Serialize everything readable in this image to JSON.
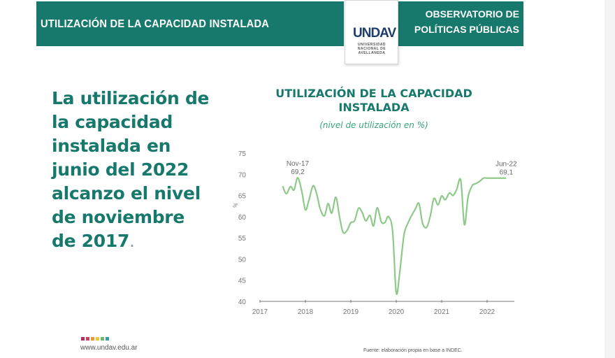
{
  "header": {
    "title": "UTILIZACIÓN DE LA CAPACIDAD INSTALADA",
    "observatorio_line1": "OBSERVATORIO DE",
    "observatorio_line2": "POLÍTICAS PÚBLICAS",
    "logo_mark": "UNDAV",
    "logo_sub": "UNIVERSIDAD NACIONAL DE AVELLANEDA"
  },
  "headline": {
    "lines": [
      "La utilización de",
      "la capacidad",
      "instalada en",
      "junio del 2022",
      "alcanzo el nivel",
      "de noviembre",
      "de 2017"
    ],
    "end_punct": "."
  },
  "footer": {
    "url": "www.undav.edu.ar",
    "source": "Fuente: elaboración propia en base a INDEC.",
    "dot_colors": [
      "#b0305a",
      "#d0405a",
      "#e89a3a",
      "#e6c83a",
      "#6fb86a",
      "#3a9aa8"
    ]
  },
  "colors": {
    "brand": "#17786c",
    "line": "#8fc98a"
  },
  "chart_data": {
    "type": "line",
    "title": "UTILIZACIÓN DE LA CAPACIDAD INSTALADA",
    "subtitle": "(nivel de utilización en %)",
    "xlabel": "",
    "ylabel": "%",
    "ylim": [
      40,
      75
    ],
    "yticks": [
      75,
      70,
      65,
      60,
      55,
      50,
      45,
      40
    ],
    "xlim": [
      2017.0,
      2022.6
    ],
    "xticks": [
      2017,
      2018,
      2019,
      2020,
      2021,
      2022
    ],
    "grid": false,
    "annotations": [
      {
        "label": "Nov-17",
        "value": "69,2",
        "x": 2017.83,
        "y": 69.2
      },
      {
        "label": "Jun-22",
        "value": "69,1",
        "x": 2022.42,
        "y": 69.1
      }
    ],
    "series": [
      {
        "name": "Utilización de la capacidad instalada",
        "x": [
          2017.5,
          2017.58,
          2017.67,
          2017.75,
          2017.83,
          2017.92,
          2018.0,
          2018.08,
          2018.17,
          2018.25,
          2018.33,
          2018.42,
          2018.5,
          2018.58,
          2018.67,
          2018.75,
          2018.83,
          2018.92,
          2019.0,
          2019.08,
          2019.17,
          2019.25,
          2019.33,
          2019.42,
          2019.5,
          2019.58,
          2019.67,
          2019.75,
          2019.83,
          2019.92,
          2020.0,
          2020.08,
          2020.17,
          2020.25,
          2020.33,
          2020.42,
          2020.5,
          2020.58,
          2020.67,
          2020.75,
          2020.83,
          2020.92,
          2021.0,
          2021.08,
          2021.17,
          2021.25,
          2021.33,
          2021.42,
          2021.5,
          2021.58,
          2021.67,
          2021.75,
          2021.83,
          2021.92,
          2022.0,
          2022.08,
          2022.17,
          2022.25,
          2022.33,
          2022.42
        ],
        "values": [
          67.2,
          65.4,
          67.1,
          66.3,
          69.2,
          66.0,
          61.6,
          64.0,
          67.3,
          65.3,
          61.7,
          60.2,
          63.1,
          60.8,
          64.6,
          60.0,
          56.3,
          56.8,
          58.6,
          59.0,
          62.0,
          61.0,
          59.0,
          60.3,
          57.8,
          62.1,
          58.8,
          58.6,
          60.0,
          56.5,
          42.0,
          47.2,
          55.7,
          58.3,
          60.1,
          61.8,
          63.1,
          58.4,
          57.5,
          60.2,
          64.3,
          62.8,
          64.9,
          64.0,
          65.6,
          65.0,
          66.4,
          68.6,
          58.1,
          64.6,
          67.3,
          67.8,
          68.3,
          69.1,
          69.1,
          69.1,
          69.1,
          69.1,
          69.1,
          69.1
        ]
      }
    ]
  }
}
